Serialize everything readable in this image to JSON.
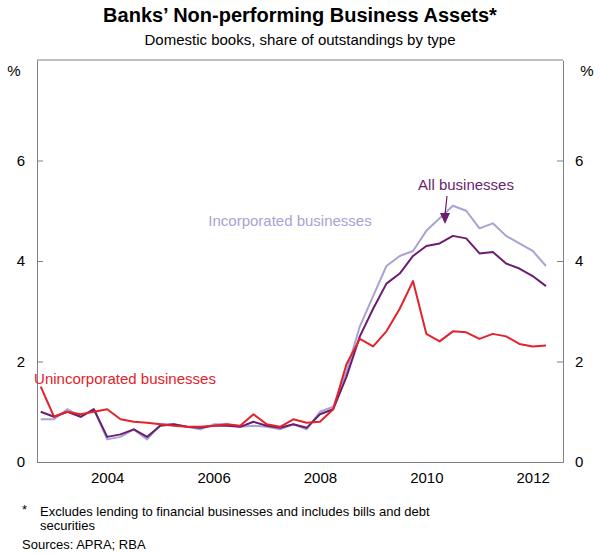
{
  "chart_data": {
    "type": "line",
    "title": "Banks’ Non-performing Business Assets*",
    "subtitle": "Domestic books, share of outstandings by type",
    "ylabel": "%",
    "x": [
      2003.25,
      2003.5,
      2003.75,
      2004,
      2004.25,
      2004.5,
      2004.75,
      2005,
      2005.25,
      2005.5,
      2005.75,
      2006,
      2006.25,
      2006.5,
      2006.75,
      2007,
      2007.25,
      2007.5,
      2007.75,
      2008,
      2008.25,
      2008.5,
      2008.75,
      2009,
      2009.25,
      2009.5,
      2009.75,
      2010,
      2010.25,
      2010.5,
      2010.75,
      2011,
      2011.25,
      2011.5,
      2011.75,
      2012,
      2012.25,
      2012.5,
      2012.75
    ],
    "series": [
      {
        "name": "Incorporated businesses",
        "color": "#a7a3d3",
        "values": [
          0.85,
          0.85,
          1.05,
          0.9,
          1.05,
          0.45,
          0.5,
          0.65,
          0.45,
          0.75,
          0.75,
          0.7,
          0.65,
          0.75,
          0.75,
          0.7,
          0.72,
          0.7,
          0.65,
          0.75,
          0.65,
          1.0,
          1.1,
          1.8,
          2.7,
          3.3,
          3.9,
          4.1,
          4.2,
          4.6,
          4.85,
          5.1,
          5.0,
          4.65,
          4.75,
          4.5,
          4.35,
          4.2,
          3.9
        ]
      },
      {
        "name": "All businesses",
        "color": "#6b1d6f",
        "values": [
          1.0,
          0.9,
          1.0,
          0.9,
          1.05,
          0.5,
          0.55,
          0.65,
          0.5,
          0.72,
          0.75,
          0.7,
          0.68,
          0.72,
          0.72,
          0.7,
          0.8,
          0.72,
          0.68,
          0.75,
          0.68,
          0.95,
          1.05,
          1.7,
          2.5,
          3.05,
          3.55,
          3.75,
          4.1,
          4.3,
          4.35,
          4.5,
          4.45,
          4.15,
          4.18,
          3.95,
          3.85,
          3.7,
          3.5
        ]
      },
      {
        "name": "Unincorporated businesses",
        "color": "#e3222b",
        "values": [
          1.5,
          0.9,
          1.0,
          0.95,
          1.0,
          1.05,
          0.85,
          0.8,
          0.78,
          0.75,
          0.72,
          0.7,
          0.7,
          0.72,
          0.75,
          0.72,
          0.95,
          0.75,
          0.7,
          0.85,
          0.78,
          0.8,
          1.05,
          1.95,
          2.45,
          2.3,
          2.6,
          3.05,
          3.6,
          2.55,
          2.4,
          2.6,
          2.58,
          2.45,
          2.55,
          2.5,
          2.35,
          2.3,
          2.32
        ]
      }
    ],
    "xlim": [
      2003.18,
      2013.07
    ],
    "xticks": [
      {
        "value": 2004.5,
        "label": "2004"
      },
      {
        "value": 2006.5,
        "label": "2006"
      },
      {
        "value": 2008.5,
        "label": "2008"
      },
      {
        "value": 2010.5,
        "label": "2010"
      },
      {
        "value": 2012.5,
        "label": "2012"
      }
    ],
    "ylim": [
      0,
      8
    ],
    "yticks": [
      0,
      2,
      4,
      6
    ],
    "grid": false,
    "footnote_marker": "*",
    "footnote": [
      "Excludes lending to financial businesses and includes bills and debt",
      "securities"
    ],
    "source": "Sources: APRA; RBA"
  }
}
